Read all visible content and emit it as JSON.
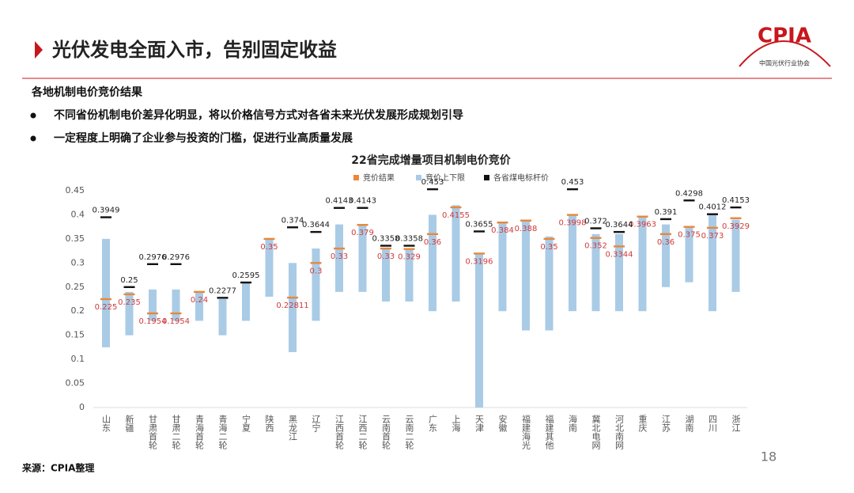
{
  "header": {
    "title": "光伏发电全面入市，告别固定收益",
    "subtitle": "各地机制电价竞价结果",
    "bullets": [
      "不同省份机制电价差异化明显，将以价格信号方式对各省未来光伏发展形成规划引导",
      "一定程度上明确了企业参与投资的门槛，促进行业高质量发展"
    ]
  },
  "logo": {
    "name": "CPIA",
    "org": "中国光伏行业协会"
  },
  "footer": {
    "source": "来源：CPIA整理",
    "page": "18"
  },
  "chart_data": {
    "type": "range",
    "title": "22省完成增量项目机制电价竞价",
    "categories": [
      "山东",
      "新疆",
      "甘肃首轮",
      "甘肃二轮",
      "青海首轮",
      "青海二轮",
      "宁夏",
      "陕西",
      "黑龙江",
      "辽宁",
      "江西首轮",
      "江西二轮",
      "云南首轮",
      "云南二轮",
      "广东",
      "上海",
      "天津",
      "安徽",
      "福建海光",
      "福建其他",
      "海南",
      "冀北电网",
      "河北南网",
      "重庆",
      "江苏",
      "湖南",
      "四川",
      "浙江"
    ],
    "ylim": [
      0,
      0.45
    ],
    "yticks": [
      0,
      0.05,
      0.1,
      0.15,
      0.2,
      0.25,
      0.3,
      0.35,
      0.4,
      0.45
    ],
    "series": [
      {
        "name": "竞价结果",
        "color": "#e8883a",
        "label_color": "#d23a3a",
        "values": [
          0.225,
          0.235,
          0.1954,
          0.1954,
          0.24,
          null,
          null,
          0.35,
          0.22811,
          0.3,
          0.33,
          0.379,
          0.33,
          0.329,
          0.36,
          0.4155,
          0.3196,
          0.384,
          0.388,
          0.35,
          0.3998,
          0.352,
          0.3344,
          0.3963,
          0.36,
          0.375,
          0.373,
          0.3929
        ]
      },
      {
        "name": "竞价上下限",
        "color": "#a9cbe6",
        "low": [
          0.125,
          0.15,
          0.18,
          0.18,
          0.18,
          0.15,
          0.18,
          0.23,
          0.115,
          0.18,
          0.24,
          0.24,
          0.22,
          0.22,
          0.2,
          0.22,
          0,
          0.2,
          0.16,
          0.16,
          0.2,
          0.2,
          0.2,
          0.2,
          0.25,
          0.26,
          0.2,
          0.24
        ],
        "high": [
          0.35,
          0.24,
          0.245,
          0.245,
          0.24,
          0.225,
          0.26,
          0.35,
          0.3,
          0.33,
          0.38,
          0.38,
          0.33,
          0.33,
          0.4,
          0.42,
          0.32,
          0.385,
          0.39,
          0.355,
          0.4,
          0.36,
          0.36,
          0.395,
          0.38,
          0.375,
          0.4,
          0.39
        ]
      },
      {
        "name": "各省煤电标杆价",
        "color": "#111111",
        "label_color": "#222222",
        "values": [
          0.3949,
          0.25,
          0.2976,
          0.2976,
          null,
          0.2277,
          0.2595,
          null,
          0.374,
          0.3644,
          0.4143,
          0.4143,
          0.3358,
          0.3358,
          0.453,
          null,
          0.3655,
          null,
          null,
          null,
          0.453,
          0.372,
          0.3644,
          null,
          0.391,
          0.4298,
          0.4012,
          0.4153
        ]
      }
    ]
  }
}
